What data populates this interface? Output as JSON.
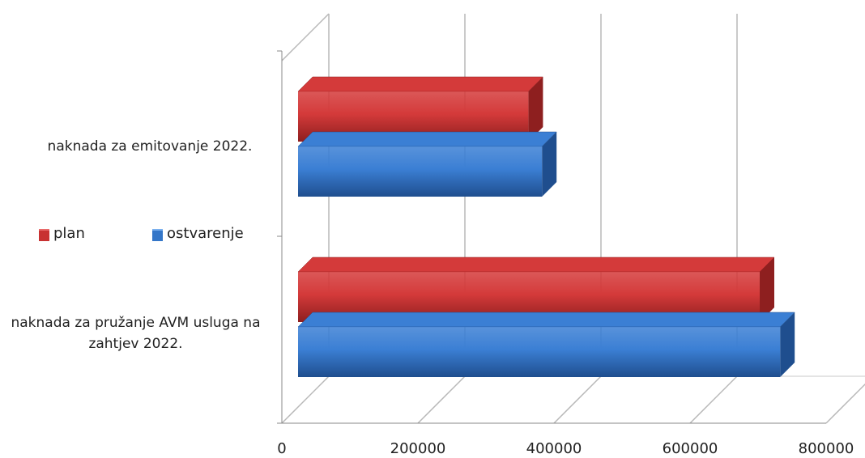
{
  "chart_data": {
    "type": "bar",
    "orientation": "horizontal",
    "three_d": true,
    "categories": [
      "naknada za emitovanje 2022.",
      "naknada za pružanje AVM usluga na zahtjev 2022."
    ],
    "series": [
      {
        "name": "plan",
        "values": [
          360000,
          700000
        ],
        "color": "#d43a3a",
        "colorDark": "#8e1f1f"
      },
      {
        "name": "ostvarenje",
        "values": [
          380000,
          730000
        ],
        "color": "#3b7fd4",
        "colorDark": "#1f4e8e"
      }
    ],
    "xlim": [
      0,
      800000
    ],
    "xticks": [
      0,
      200000,
      400000,
      600000,
      800000
    ],
    "grid": true,
    "legend": "left"
  }
}
